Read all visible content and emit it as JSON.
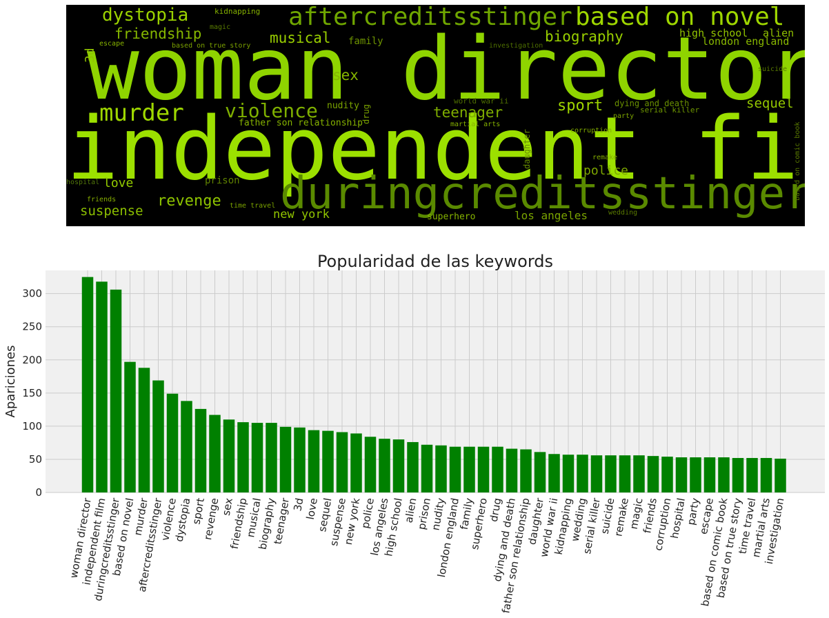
{
  "wordcloud": {
    "background": "#000000",
    "words": [
      {
        "text": "woman director",
        "color": "#8fd400"
      },
      {
        "text": "independent film",
        "color": "#9ce000"
      },
      {
        "text": "duringcreditsstinger",
        "color": "#5a8a00"
      },
      {
        "text": "aftercreditsstinger",
        "color": "#6fa600"
      },
      {
        "text": "based on novel",
        "color": "#9ed600"
      },
      {
        "text": "dystopia",
        "color": "#9bd200"
      },
      {
        "text": "friendship",
        "color": "#86b800"
      },
      {
        "text": "murder",
        "color": "#9fd800"
      },
      {
        "text": "violence",
        "color": "#7fb000"
      },
      {
        "text": "revenge",
        "color": "#8ec400"
      },
      {
        "text": "suspense",
        "color": "#8cbf00"
      },
      {
        "text": "love",
        "color": "#94cc00"
      },
      {
        "text": "musical",
        "color": "#9ad000"
      },
      {
        "text": "biography",
        "color": "#99cf00"
      },
      {
        "text": "sport",
        "color": "#9fd600"
      },
      {
        "text": "sequel",
        "color": "#94c800"
      },
      {
        "text": "sex",
        "color": "#86b600"
      },
      {
        "text": "teenager",
        "color": "#7fae00"
      },
      {
        "text": "police",
        "color": "#7ea800"
      },
      {
        "text": "new york",
        "color": "#92c600"
      },
      {
        "text": "los angeles",
        "color": "#7aa400"
      },
      {
        "text": "high school",
        "color": "#92c400"
      },
      {
        "text": "alien",
        "color": "#8fbf00"
      },
      {
        "text": "london england",
        "color": "#88b800"
      },
      {
        "text": "3d",
        "color": "#90c200"
      },
      {
        "text": "family",
        "color": "#6e9400"
      },
      {
        "text": "superhero",
        "color": "#86b400"
      },
      {
        "text": "prison",
        "color": "#5f8200"
      },
      {
        "text": "nudity",
        "color": "#7ca600"
      },
      {
        "text": "drug",
        "color": "#7aa200"
      },
      {
        "text": "father son relationship",
        "color": "#86b200"
      },
      {
        "text": "dying and death",
        "color": "#6a9000"
      },
      {
        "text": "serial killer",
        "color": "#6f9800"
      },
      {
        "text": "daughter",
        "color": "#668a00"
      },
      {
        "text": "world war ii",
        "color": "#4e6e00"
      },
      {
        "text": "kidnapping",
        "color": "#84b000"
      },
      {
        "text": "magic",
        "color": "#5a7c00"
      },
      {
        "text": "escape",
        "color": "#88b400"
      },
      {
        "text": "based on true story",
        "color": "#7ca200"
      },
      {
        "text": "investigation",
        "color": "#4f7000"
      },
      {
        "text": "suicide",
        "color": "#5a7c00"
      },
      {
        "text": "based on comic book",
        "color": "#5a7a00"
      },
      {
        "text": "party",
        "color": "#7ea600"
      },
      {
        "text": "martial arts",
        "color": "#86b200"
      },
      {
        "text": "corruption",
        "color": "#82ac00"
      },
      {
        "text": "remake",
        "color": "#82aa00"
      },
      {
        "text": "hospital",
        "color": "#52760a"
      },
      {
        "text": "friends",
        "color": "#86ae00"
      },
      {
        "text": "time travel",
        "color": "#7aa200"
      },
      {
        "text": "wedding",
        "color": "#5a7a00"
      }
    ]
  },
  "chart_data": {
    "type": "bar",
    "title": "Popularidad de las keywords",
    "xlabel": "",
    "ylabel": "Apariciones",
    "ylim": [
      0,
      335
    ],
    "yticks": [
      0,
      50,
      100,
      150,
      200,
      250,
      300
    ],
    "grid": true,
    "bar_color": "#008000",
    "background": "#f0f0f0",
    "categories": [
      "woman director",
      "independent film",
      "duringcreditsstinger",
      "based on novel",
      "murder",
      "aftercreditsstinger",
      "violence",
      "dystopia",
      "sport",
      "revenge",
      "sex",
      "friendship",
      "musical",
      "biography",
      "teenager",
      "3d",
      "love",
      "sequel",
      "suspense",
      "new york",
      "police",
      "los angeles",
      "high school",
      "alien",
      "prison",
      "nudity",
      "london england",
      "family",
      "superhero",
      "drug",
      "dying and death",
      "father son relationship",
      "daughter",
      "world war ii",
      "kidnapping",
      "wedding",
      "serial killer",
      "suicide",
      "remake",
      "magic",
      "friends",
      "corruption",
      "hospital",
      "party",
      "escape",
      "based on comic book",
      "based on true story",
      "time travel",
      "martial arts",
      "investigation"
    ],
    "values": [
      325,
      318,
      306,
      197,
      188,
      169,
      149,
      138,
      126,
      117,
      110,
      106,
      105,
      105,
      99,
      98,
      94,
      93,
      91,
      89,
      84,
      81,
      80,
      76,
      72,
      71,
      69,
      69,
      69,
      69,
      66,
      65,
      61,
      58,
      57,
      57,
      56,
      56,
      56,
      56,
      55,
      54,
      53,
      53,
      53,
      53,
      52,
      52,
      52,
      51
    ]
  }
}
